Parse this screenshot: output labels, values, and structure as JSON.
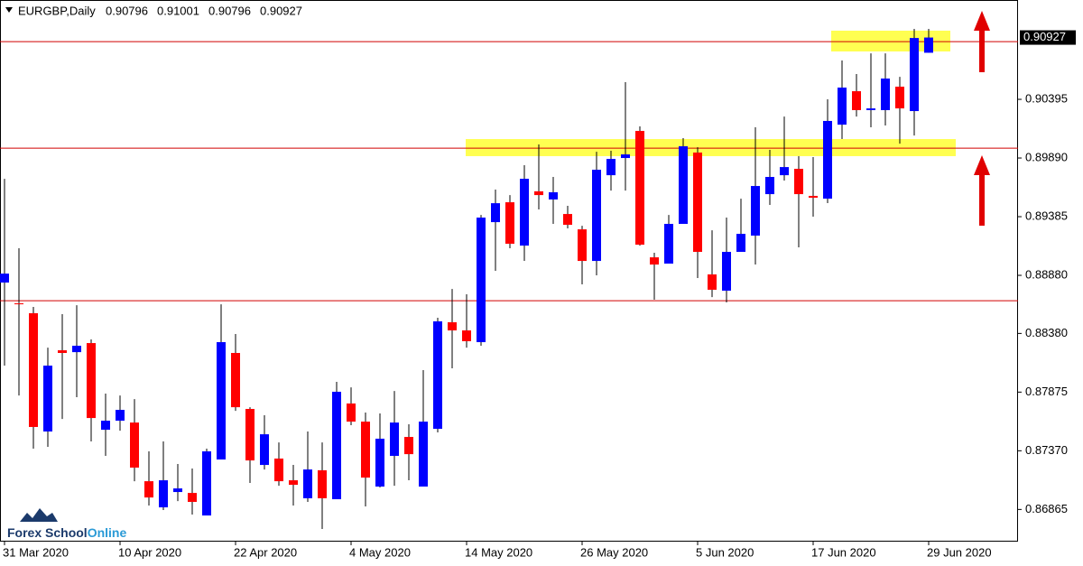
{
  "chart_data": {
    "type": "candlestick",
    "title": "EURGBP,Daily",
    "categories": [
      "31 Mar 2020",
      null,
      null,
      null,
      null,
      null,
      null,
      null,
      "10 Apr 2020",
      null,
      null,
      null,
      null,
      null,
      null,
      null,
      "22 Apr 2020",
      null,
      null,
      null,
      null,
      null,
      null,
      null,
      "4 May 2020",
      null,
      null,
      null,
      null,
      null,
      null,
      null,
      "14 May 2020",
      null,
      null,
      null,
      null,
      null,
      null,
      null,
      "26 May 2020",
      null,
      null,
      null,
      null,
      null,
      null,
      null,
      "5 Jun 2020",
      null,
      null,
      null,
      null,
      null,
      null,
      null,
      "17 Jun 2020",
      null,
      null,
      null,
      null,
      null,
      null,
      null,
      "29 Jun 2020"
    ],
    "open": [
      0.88818,
      0.88639,
      0.88554,
      0.87536,
      0.88235,
      0.88219,
      0.88297,
      0.87551,
      0.87629,
      0.87613,
      0.87108,
      0.86883,
      0.87015,
      0.87007,
      0.86813,
      0.87295,
      0.88212,
      0.8773,
      0.87248,
      0.87303,
      0.87116,
      0.86961,
      0.87202,
      0.86953,
      0.87777,
      0.87621,
      0.87062,
      0.87326,
      0.87489,
      0.87062,
      0.87559,
      0.88476,
      0.88406,
      0.88305,
      0.89338,
      0.89509,
      0.89136,
      0.89603,
      0.89533,
      0.89408,
      0.89276,
      0.89004,
      0.89742,
      0.8989,
      0.90123,
      0.89035,
      0.88981,
      0.89323,
      0.89937,
      0.88888,
      0.88748,
      0.89082,
      0.89222,
      0.89579,
      0.89742,
      0.89797,
      0.89564,
      0.8954,
      0.90177,
      0.90465,
      0.90302,
      0.90302,
      0.90504,
      0.90294,
      0.90796
    ],
    "high": [
      0.89711,
      0.89113,
      0.88608,
      0.88258,
      0.88546,
      0.88623,
      0.88328,
      0.87862,
      0.87846,
      0.87815,
      0.87365,
      0.8745,
      0.87256,
      0.87217,
      0.87388,
      0.88631,
      0.88375,
      0.87745,
      0.87676,
      0.87442,
      0.87248,
      0.87536,
      0.87442,
      0.87963,
      0.87916,
      0.87699,
      0.87691,
      0.87885,
      0.87598,
      0.88064,
      0.88515,
      0.88763,
      0.88717,
      0.894,
      0.89618,
      0.89571,
      0.89828,
      0.90007,
      0.89727,
      0.89478,
      0.89307,
      0.89944,
      0.89952,
      0.90543,
      0.90162,
      0.89074,
      0.894,
      0.90061,
      0.89983,
      0.89268,
      0.89377,
      0.8954,
      0.90154,
      0.8996,
      0.90247,
      0.89906,
      0.89898,
      0.90395,
      0.90729,
      0.90613,
      0.90791,
      0.90791,
      0.90589,
      0.91001,
      0.91001
    ],
    "low": [
      0.88103,
      0.87846,
      0.87388,
      0.87404,
      0.87644,
      0.87831,
      0.8745,
      0.87326,
      0.87543,
      0.87108,
      0.86899,
      0.8686,
      0.86937,
      0.86821,
      0.86813,
      0.87295,
      0.87714,
      0.87093,
      0.87209,
      0.87069,
      0.86899,
      0.8693,
      0.86697,
      0.86953,
      0.8759,
      0.86891,
      0.87054,
      0.87069,
      0.87116,
      0.87062,
      0.87528,
      0.8808,
      0.88258,
      0.88274,
      0.88919,
      0.89113,
      0.89004,
      0.89447,
      0.89323,
      0.89284,
      0.88802,
      0.8888,
      0.8961,
      0.8961,
      0.89136,
      0.8867,
      0.88981,
      0.89323,
      0.88857,
      0.88693,
      0.88647,
      0.89082,
      0.88973,
      0.89486,
      0.89696,
      0.89121,
      0.89385,
      0.89502,
      0.90053,
      0.90247,
      0.90154,
      0.9017,
      0.90014,
      0.90084,
      0.90796
    ],
    "close": [
      0.88895,
      0.88631,
      0.87575,
      0.88103,
      0.88212,
      0.88274,
      0.87652,
      0.87629,
      0.87722,
      0.87225,
      0.86968,
      0.87116,
      0.87046,
      0.8693,
      0.87365,
      0.88305,
      0.87745,
      0.87287,
      0.87512,
      0.87108,
      0.87077,
      0.87209,
      0.86961,
      0.87878,
      0.87621,
      0.87139,
      0.87474,
      0.87613,
      0.87341,
      0.87621,
      0.88484,
      0.88406,
      0.88313,
      0.89377,
      0.89501,
      0.89152,
      0.89711,
      0.89571,
      0.89595,
      0.89315,
      0.89004,
      0.89789,
      0.89882,
      0.89921,
      0.89144,
      0.88973,
      0.89323,
      0.89991,
      0.89082,
      0.88756,
      0.89082,
      0.89237,
      0.89649,
      0.89727,
      0.89812,
      0.89579,
      0.89548,
      0.90209,
      0.90496,
      0.90302,
      0.90317,
      0.90574,
      0.90317,
      0.90923,
      0.90927
    ],
    "up_color": "#0000ff",
    "down_color": "#ff0000",
    "ylim": [
      0.86588,
      0.9125
    ],
    "yticks": [
      0.90395,
      {
        "value": 0.8989,
        "label": "0.89890"
      },
      0.89385,
      {
        "value": 0.8888,
        "label": "0.88880"
      },
      {
        "value": 0.8838,
        "label": "0.88380"
      },
      0.87875,
      {
        "value": 0.8737,
        "label": "0.87370"
      },
      0.86865
    ],
    "levels": [
      0.90892,
      0.89975,
      0.88662
    ],
    "level_color": "#d00000",
    "zones": [
      [
        0.90807,
        0.90986
      ],
      [
        0.89906,
        0.90053
      ]
    ],
    "zone_color": "#ffff33"
  },
  "watermark": {
    "brand": "Forex School",
    "suffix": "Online"
  }
}
